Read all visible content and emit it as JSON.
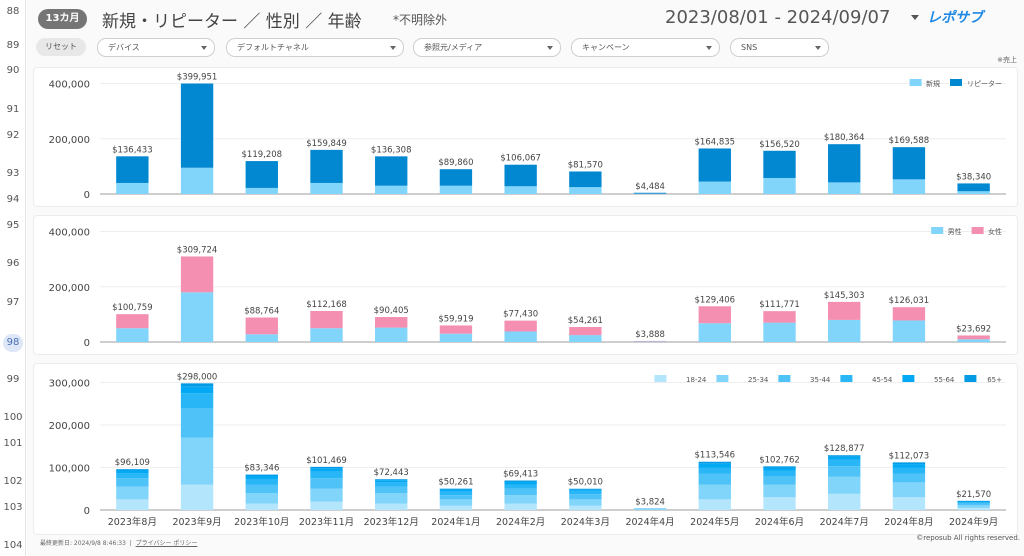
{
  "gutter": {
    "lines": [
      {
        "n": "88"
      },
      {
        "n": "89"
      },
      {
        "n": "90"
      },
      {
        "n": "91"
      },
      {
        "n": "92"
      },
      {
        "n": "93"
      },
      {
        "n": "94"
      },
      {
        "n": "95"
      },
      {
        "n": "96"
      },
      {
        "n": "97"
      },
      {
        "n": "98",
        "hl": true
      },
      {
        "n": "99"
      },
      {
        "n": "100"
      },
      {
        "n": "101"
      },
      {
        "n": "102"
      },
      {
        "n": "103"
      },
      {
        "n": "104"
      }
    ]
  },
  "header": {
    "badge": "13カ月",
    "title": "新規・リピーター ／ 性別 ／ 年齢",
    "note": "*不明除外",
    "date_range": "2023/08/01 - 2024/09/07",
    "logo": "レポサブ"
  },
  "filters": {
    "reset": "リセット",
    "dropdowns": [
      "デバイス",
      "デフォルトチャネル",
      "参照元/メディア",
      "キャンペーン",
      "SNS"
    ],
    "note": "※売上"
  },
  "footer": {
    "updated": "最終更新日: 2024/9/8 8:46:33",
    "privacy": "プライバシー ポリシー",
    "copyright": "©reposub All rights reserved."
  },
  "chart_data": [
    {
      "type": "bar",
      "stacked": true,
      "categories": [
        "2023年8月",
        "2023年9月",
        "2023年10月",
        "2023年11月",
        "2023年12月",
        "2024年1月",
        "2024年2月",
        "2024年3月",
        "2024年4月",
        "2024年5月",
        "2024年6月",
        "2024年7月",
        "2024年8月",
        "2024年9月"
      ],
      "series": [
        {
          "name": "新規",
          "color": "#81d4fa",
          "values": [
            40000,
            95000,
            22000,
            40000,
            30000,
            30000,
            28000,
            25000,
            1500,
            45000,
            58000,
            42000,
            53000,
            10000
          ]
        },
        {
          "name": "リピーター",
          "color": "#0288d1",
          "values": [
            96433,
            304951,
            97208,
            119849,
            106308,
            59860,
            78067,
            56570,
            2984,
            119835,
            98520,
            138364,
            116588,
            28340
          ]
        }
      ],
      "totals": [
        "$136,433",
        "$399,951",
        "$119,208",
        "$159,849",
        "$136,308",
        "$89,860",
        "$106,067",
        "$81,570",
        "$4,484",
        "$164,835",
        "$156,520",
        "$180,364",
        "$169,588",
        "$38,340"
      ],
      "ylim": [
        0,
        420000
      ],
      "yticks": [
        "0",
        "200,000",
        "400,000"
      ],
      "legend": "top-right",
      "grid": true
    },
    {
      "type": "bar",
      "stacked": true,
      "categories": [
        "2023年8月",
        "2023年9月",
        "2023年10月",
        "2023年11月",
        "2023年12月",
        "2024年1月",
        "2024年2月",
        "2024年3月",
        "2024年4月",
        "2024年5月",
        "2024年6月",
        "2024年7月",
        "2024年8月",
        "2024年9月"
      ],
      "series": [
        {
          "name": "男性",
          "color": "#81d4fa",
          "values": [
            50000,
            180000,
            28000,
            50000,
            52000,
            30000,
            38000,
            25000,
            2000,
            68000,
            70000,
            80000,
            78000,
            10000
          ]
        },
        {
          "name": "女性",
          "color": "#f48fb1",
          "values": [
            50759,
            129724,
            60764,
            62168,
            38405,
            29919,
            39430,
            29261,
            1888,
            61406,
            41771,
            65303,
            48031,
            13692
          ]
        }
      ],
      "totals": [
        "$100,759",
        "$309,724",
        "$88,764",
        "$112,168",
        "$90,405",
        "$59,919",
        "$77,430",
        "$54,261",
        "$3,888",
        "$129,406",
        "$111,771",
        "$145,303",
        "$126,031",
        "$23,692"
      ],
      "ylim": [
        0,
        420000
      ],
      "yticks": [
        "0",
        "200,000",
        "400,000"
      ],
      "legend": "top-right",
      "grid": true
    },
    {
      "type": "bar",
      "stacked": true,
      "categories": [
        "2023年8月",
        "2023年9月",
        "2023年10月",
        "2023年11月",
        "2023年12月",
        "2024年1月",
        "2024年2月",
        "2024年3月",
        "2024年4月",
        "2024年5月",
        "2024年6月",
        "2024年7月",
        "2024年8月",
        "2024年9月"
      ],
      "series": [
        {
          "name": "18-24",
          "color": "#b3e5fc",
          "values": [
            25000,
            60000,
            15000,
            20000,
            15000,
            10000,
            15000,
            10000,
            800,
            25000,
            30000,
            38000,
            30000,
            5000
          ]
        },
        {
          "name": "25-34",
          "color": "#81d4fa",
          "values": [
            30000,
            110000,
            25000,
            30000,
            25000,
            15000,
            20000,
            15000,
            1200,
            35000,
            30000,
            40000,
            35000,
            6000
          ]
        },
        {
          "name": "35-44",
          "color": "#4fc3f7",
          "values": [
            20000,
            70000,
            20000,
            25000,
            15000,
            10000,
            15000,
            12000,
            800,
            25000,
            20000,
            25000,
            20000,
            4000
          ]
        },
        {
          "name": "45-54",
          "color": "#29b6f6",
          "values": [
            12000,
            35000,
            13000,
            15000,
            10000,
            8000,
            10000,
            8000,
            600,
            15000,
            12000,
            15000,
            15000,
            3000
          ]
        },
        {
          "name": "55-64",
          "color": "#03a9f4",
          "values": [
            6000,
            15000,
            7000,
            8000,
            5000,
            5000,
            6000,
            3000,
            300,
            9000,
            7000,
            7000,
            8000,
            2000
          ]
        },
        {
          "name": "65+",
          "color": "#039be5",
          "values": [
            3109,
            8000,
            3346,
            3469,
            2443,
            2261,
            3413,
            2010,
            124,
            4546,
            3762,
            3877,
            4073,
            1570
          ]
        }
      ],
      "totals": [
        "$96,109",
        "$298,000",
        "$83,346",
        "$101,469",
        "$72,443",
        "$50,261",
        "$69,413",
        "$50,010",
        "$3,824",
        "$113,546",
        "$102,762",
        "$128,877",
        "$112,073",
        "$21,570"
      ],
      "ylim": [
        0,
        320000
      ],
      "yticks": [
        "0",
        "100,000",
        "200,000",
        "300,000"
      ],
      "legend": "top-right",
      "grid": true,
      "show_xlabels": true
    }
  ]
}
